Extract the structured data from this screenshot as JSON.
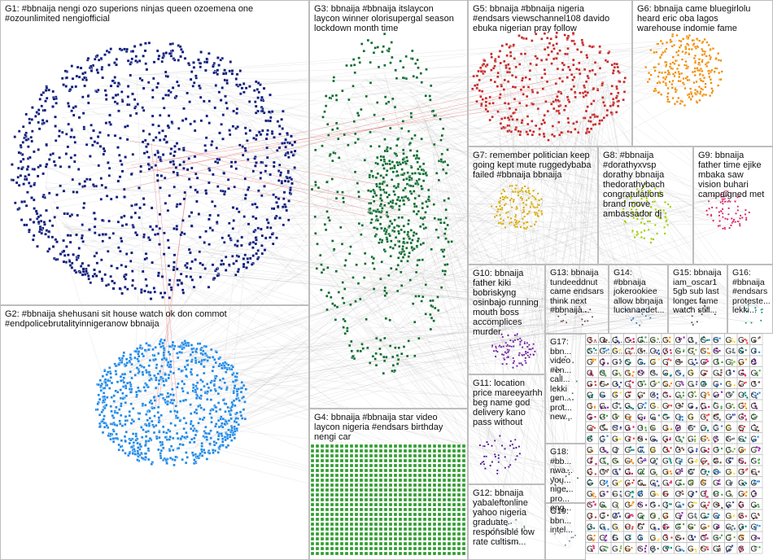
{
  "groups": [
    {
      "id": "G1",
      "label": "G1: #bbnaija nengi ozo superions ninjas queen ozoemena one\n#ozounlimited nengiofficial",
      "color": "#0a1a7a"
    },
    {
      "id": "G2",
      "label": "G2: #bbnaija shehusani sit house watch ok don commot\n#endpolicebrutalityinnigeranow bbnaija",
      "color": "#1e88e5"
    },
    {
      "id": "G3",
      "label": "G3: bbnaija #bbnaija itslaycon\nlaycon winner olorisupergal season\nlockdown month time",
      "color": "#0b6b2e"
    },
    {
      "id": "G4",
      "label": "G4: bbnaija #bbnaija star video\nlaycon nigeria #endsars birthday\nnengi car",
      "color": "#2e9e2e"
    },
    {
      "id": "G5",
      "label": "G5: bbnaija #bbnaija nigeria\n#endsars viewschannel108 davido\nebuka nigerian pray follow",
      "color": "#c62828"
    },
    {
      "id": "G6",
      "label": "G6: bbnaija came bluegirlolu\nheard eric oba lagos\nwarehouse indomie fame",
      "color": "#ef8c00"
    },
    {
      "id": "G7",
      "label": "G7: remember politician keep\ngoing kept mute ruggedybaba\nfailed #bbnaija bbnaija",
      "color": "#d4a800"
    },
    {
      "id": "G8",
      "label": "G8: #bbnaija\n#dorathyxvsp\ndorathy bbnaija\nthedorathybach\ncongratulations\nbrand move\nambassador dj",
      "color": "#9ccc00"
    },
    {
      "id": "G9",
      "label": "G9: bbnaija\nfather time ejike\nmbaka saw\nvision buhari\ncampaigned met",
      "color": "#d81b60"
    },
    {
      "id": "G10",
      "label": "G10: bbnaija\nfather kiki\nbobriskyng\nosinbajo running\nmouth boss\naccomplices\nmurder",
      "color": "#6a1b9a"
    },
    {
      "id": "G11",
      "label": "G11: location\nprice mareeyarhh\nbeg name god\ndelivery kano\npass without",
      "color": "#4a148c"
    },
    {
      "id": "G12",
      "label": "G12: bbnaija\nyabaleftonline\nyahoo nigeria\ngraduate\nresponsible low\nrate cultism...",
      "color": "#607d8b"
    },
    {
      "id": "G13",
      "label": "G13: bbnaija\ntundeeddnut\ncame endsars\nthink next\n#bbnaija...",
      "color": "#5d4037"
    },
    {
      "id": "G14",
      "label": "G14:\n#bbnaija\njokerookiee\nallow bbnaija\nlucianaedet...",
      "color": "#1565c0"
    },
    {
      "id": "G15",
      "label": "G15: bbnaija\niam_oscar1\n5gb sub last\nlonger fame\nwatch still...",
      "color": "#37474f"
    },
    {
      "id": "G16",
      "label": "G16:\n#bbnaija\n#endsars\nproteste...\nlekki...",
      "color": "#00897b"
    },
    {
      "id": "G17",
      "label": "G17:\nbbn...\nvideo\n#en...\ncall...\nlekki\ngen...\nprot...\nnew...",
      "color": "#546e7a"
    },
    {
      "id": "G18",
      "label": "G18:\n#bb...\nnwa...\nyou...\nnige...\npro...\neng...",
      "color": "#455a64"
    },
    {
      "id": "G19",
      "label": "G19:\nbbn...\nintel...",
      "color": "#78909c"
    }
  ],
  "small_group_label": "G...",
  "small_group_short_label": "G",
  "colors": {
    "edge": "#9e9e9e",
    "highlight_edge": "#d32f2f",
    "panel_border": "#bdbdbd",
    "label_text": "#111111"
  }
}
